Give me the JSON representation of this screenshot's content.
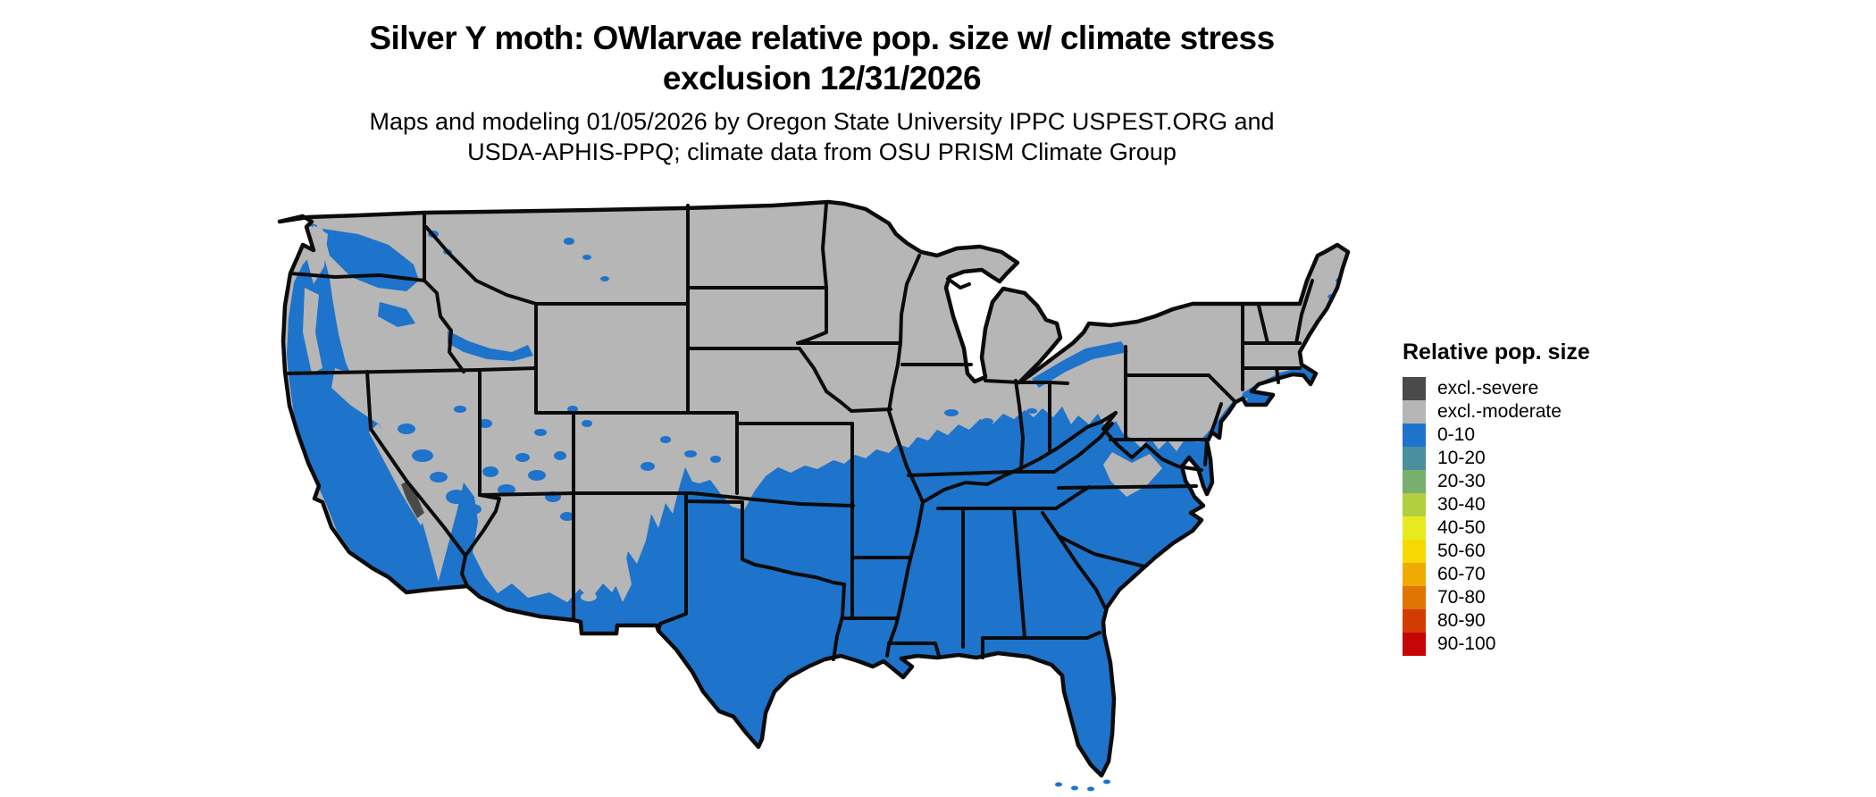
{
  "title": {
    "line1": "Silver Y moth: OWlarvae relative pop. size w/ climate stress",
    "line2": "exclusion 12/31/2026"
  },
  "subtitle": {
    "line1": "Maps and modeling 01/05/2026 by Oregon State University IPPC USPEST.ORG and",
    "line2": "USDA-APHIS-PPQ; climate data from OSU PRISM Climate Group"
  },
  "legend": {
    "title": "Relative pop. size",
    "items": [
      {
        "label": "excl.-severe",
        "color": "#4a4a4a"
      },
      {
        "label": "excl.-moderate",
        "color": "#b6b6b6"
      },
      {
        "label": "0-10",
        "color": "#1e73cb"
      },
      {
        "label": "10-20",
        "color": "#4a8f9e"
      },
      {
        "label": "20-30",
        "color": "#79af6e"
      },
      {
        "label": "30-40",
        "color": "#b2cf41"
      },
      {
        "label": "40-50",
        "color": "#e7ea20"
      },
      {
        "label": "50-60",
        "color": "#f8d803"
      },
      {
        "label": "60-70",
        "color": "#efab04"
      },
      {
        "label": "70-80",
        "color": "#e07505"
      },
      {
        "label": "80-90",
        "color": "#d23c02"
      },
      {
        "label": "90-100",
        "color": "#c60505"
      }
    ]
  },
  "map": {
    "colors": {
      "land_excluded_moderate": "#b6b6b6",
      "population_0_10_blue": "#1e73cb",
      "excluded_severe": "#4a4a4a",
      "state_border": "#0b0b0b",
      "water_background": "#ffffff"
    }
  }
}
